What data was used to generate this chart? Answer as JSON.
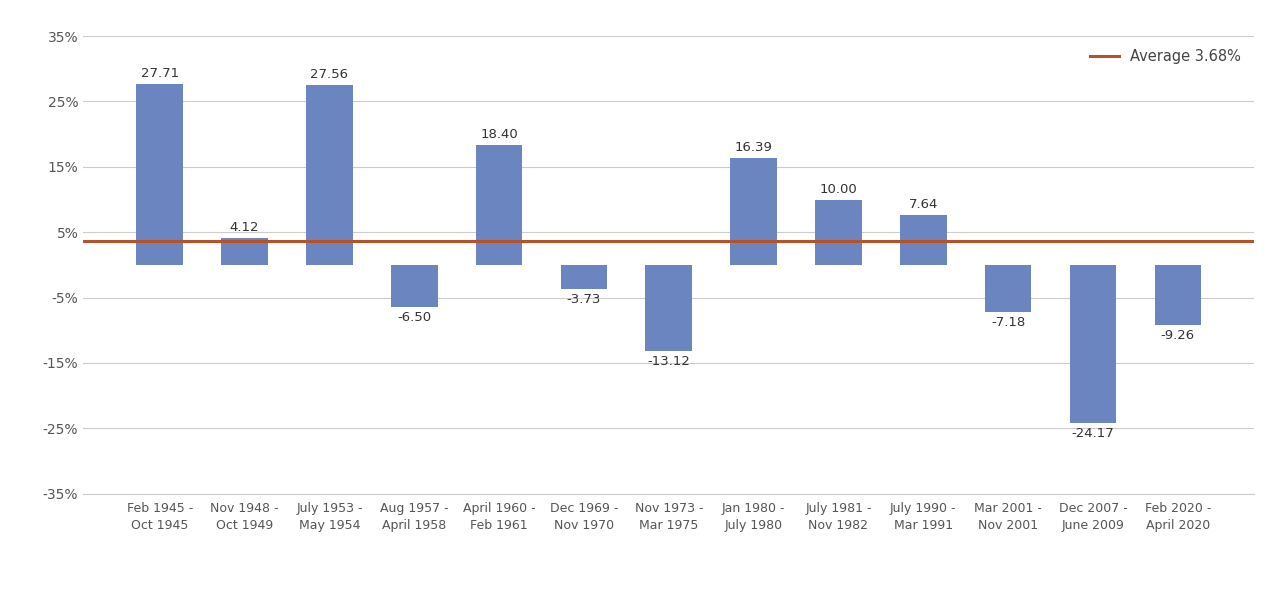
{
  "categories": [
    "Feb 1945 -\nOct 1945",
    "Nov 1948 -\nOct 1949",
    "July 1953 -\nMay 1954",
    "Aug 1957 -\nApril 1958",
    "April 1960 -\nFeb 1961",
    "Dec 1969 -\nNov 1970",
    "Nov 1973 -\nMar 1975",
    "Jan 1980 -\nJuly 1980",
    "July 1981 -\nNov 1982",
    "July 1990 -\nMar 1991",
    "Mar 2001 -\nNov 2001",
    "Dec 2007 -\nJune 2009",
    "Feb 2020 -\nApril 2020"
  ],
  "values": [
    27.71,
    4.12,
    27.56,
    -6.5,
    18.4,
    -3.73,
    -13.12,
    16.39,
    10.0,
    7.64,
    -7.18,
    -24.17,
    -9.26
  ],
  "bar_color": "#6b85c0",
  "average_value": 3.68,
  "average_label": "Average 3.68%",
  "average_color": "#b5522a",
  "ylim": [
    -35,
    35
  ],
  "yticks": [
    -35,
    -25,
    -15,
    -5,
    5,
    15,
    25,
    35
  ],
  "ytick_labels": [
    "-35%",
    "-25%",
    "-15%",
    "-5%",
    "5%",
    "15%",
    "25%",
    "35%"
  ],
  "background_color": "#ffffff",
  "grid_color": "#cccccc",
  "label_fontsize": 9,
  "tick_fontsize": 10,
  "value_fontsize": 9.5
}
